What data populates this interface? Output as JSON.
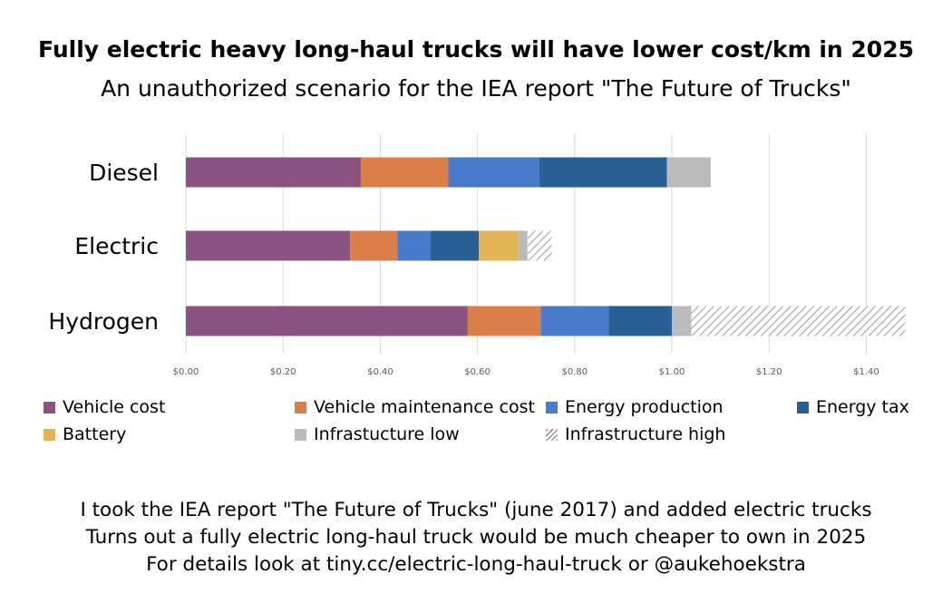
{
  "header": {
    "title": "Fully electric heavy long-haul trucks will have lower cost/km in 2025",
    "subtitle": "An unauthorized scenario for the IEA report \"The Future of Trucks\""
  },
  "chart_data": {
    "type": "bar",
    "orientation": "horizontal",
    "stacked": true,
    "title": "Fully electric heavy long-haul trucks will have lower cost/km in 2025",
    "subtitle": "An unauthorized scenario for the IEA report \"The Future of Trucks\"",
    "categories": [
      "Diesel",
      "Electric",
      "Hydrogen"
    ],
    "series": [
      {
        "name": "Vehicle cost",
        "color": "#8B5382",
        "values": [
          0.36,
          0.338,
          0.58
        ]
      },
      {
        "name": "Vehicle maintenance cost",
        "color": "#DB7E47",
        "values": [
          0.18,
          0.097,
          0.15
        ]
      },
      {
        "name": "Energy production",
        "color": "#4A7ACB",
        "values": [
          0.187,
          0.068,
          0.14
        ]
      },
      {
        "name": "Energy tax",
        "color": "#285F96",
        "values": [
          0.263,
          0.1,
          0.13
        ]
      },
      {
        "name": "Battery",
        "color": "#E1B553",
        "values": [
          0,
          0.08,
          0
        ]
      },
      {
        "name": "Infrastucture low",
        "color": "#BBBBBB",
        "values": [
          0.09,
          0.02,
          0.04
        ]
      },
      {
        "name": "Infrastructure high",
        "color": "#9A9A9A",
        "pattern": "hatch",
        "values": [
          0,
          0.05,
          0.44
        ]
      }
    ],
    "xlim": [
      0,
      1.5
    ],
    "xticks": [
      "$0.00",
      "$0.20",
      "$0.40",
      "$0.60",
      "$0.80",
      "$1.00",
      "$1.20",
      "$1.40"
    ],
    "xtick_values": [
      0,
      0.2,
      0.4,
      0.6,
      0.8,
      1.0,
      1.2,
      1.4
    ],
    "grid": true,
    "legend": "bottom"
  },
  "legend": {
    "items": [
      {
        "label": "Vehicle cost",
        "color": "#8B5382"
      },
      {
        "label": "Vehicle maintenance cost",
        "color": "#DB7E47"
      },
      {
        "label": "Energy production",
        "color": "#4A7ACB"
      },
      {
        "label": "Energy tax",
        "color": "#285F96"
      },
      {
        "label": "Battery",
        "color": "#E1B553"
      },
      {
        "label": "Infrastucture low",
        "color": "#BBBBBB"
      },
      {
        "label": "Infrastructure high",
        "color": "hatch"
      }
    ]
  },
  "footer": {
    "line1": "I took the IEA report \"The Future of Trucks\" (june 2017) and added electric trucks",
    "line2": "Turns out a fully electric long-haul truck would be much cheaper to own in 2025",
    "line3": "For details look at tiny.cc/electric-long-haul-truck or @aukehoekstra"
  }
}
